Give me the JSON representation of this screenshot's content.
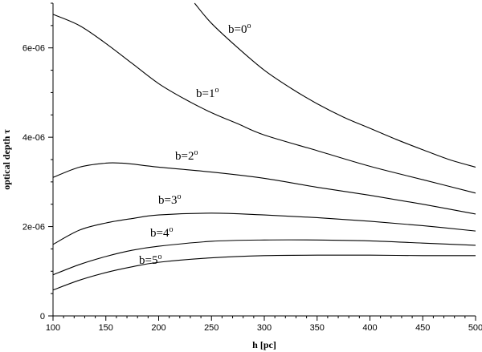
{
  "chart_data": {
    "type": "line",
    "title": "",
    "xlabel": "h [pc]",
    "ylabel": "optical depth τ",
    "xlim": [
      100,
      500
    ],
    "ylim": [
      0,
      7e-06
    ],
    "x_ticks": [
      100,
      150,
      200,
      250,
      300,
      350,
      400,
      450,
      500
    ],
    "x_tick_labels": [
      "100",
      "150",
      "200",
      "250",
      "300",
      "350",
      "400",
      "450",
      "500"
    ],
    "y_ticks": [
      0,
      2e-06,
      4e-06,
      6e-06
    ],
    "y_tick_labels": [
      "0",
      "2e-06",
      "4e-06",
      "6e-06"
    ],
    "grid": false,
    "legend": "none",
    "series": [
      {
        "name": "b=0°",
        "label_base": "b=0",
        "label_sup": "o",
        "x": [
          234,
          250,
          275,
          300,
          325,
          350,
          375,
          400,
          425,
          450,
          475,
          500
        ],
        "y": [
          7e-06,
          6.55e-06,
          6e-06,
          5.5e-06,
          5.1e-06,
          4.75e-06,
          4.45e-06,
          4.2e-06,
          3.95e-06,
          3.72e-06,
          3.5e-06,
          3.33e-06
        ]
      },
      {
        "name": "b=1°",
        "label_base": "b=1",
        "label_sup": "o",
        "x": [
          100,
          125,
          150,
          175,
          200,
          225,
          250,
          275,
          300,
          350,
          400,
          450,
          500
        ],
        "y": [
          6.75e-06,
          6.5e-06,
          6.1e-06,
          5.65e-06,
          5.2e-06,
          4.85e-06,
          4.55e-06,
          4.3e-06,
          4.05e-06,
          3.7e-06,
          3.35e-06,
          3.05e-06,
          2.75e-06
        ]
      },
      {
        "name": "b=2°",
        "label_base": "b=2",
        "label_sup": "o",
        "x": [
          100,
          125,
          150,
          165,
          175,
          200,
          250,
          300,
          350,
          400,
          450,
          500
        ],
        "y": [
          3.1e-06,
          3.33e-06,
          3.42e-06,
          3.42e-06,
          3.4e-06,
          3.33e-06,
          3.22e-06,
          3.08e-06,
          2.88e-06,
          2.7e-06,
          2.5e-06,
          2.28e-06
        ]
      },
      {
        "name": "b=3°",
        "label_base": "b=3",
        "label_sup": "o",
        "x": [
          100,
          125,
          150,
          175,
          200,
          250,
          300,
          350,
          400,
          450,
          500
        ],
        "y": [
          1.6e-06,
          1.92e-06,
          2.08e-06,
          2.18e-06,
          2.26e-06,
          2.3e-06,
          2.26e-06,
          2.2e-06,
          2.12e-06,
          2.02e-06,
          1.9e-06
        ]
      },
      {
        "name": "b=4°",
        "label_base": "b=4",
        "label_sup": "o",
        "x": [
          100,
          125,
          150,
          175,
          200,
          250,
          300,
          350,
          400,
          450,
          500
        ],
        "y": [
          9.2e-07,
          1.15e-06,
          1.33e-06,
          1.47e-06,
          1.56e-06,
          1.67e-06,
          1.7e-06,
          1.7e-06,
          1.68e-06,
          1.63e-06,
          1.58e-06
        ]
      },
      {
        "name": "b=5°",
        "label_base": "b=5",
        "label_sup": "o",
        "x": [
          100,
          125,
          150,
          175,
          200,
          250,
          300,
          350,
          400,
          450,
          500
        ],
        "y": [
          5.8e-07,
          8e-07,
          9.7e-07,
          1.1e-06,
          1.2e-06,
          1.3e-06,
          1.35e-06,
          1.36e-06,
          1.36e-06,
          1.35e-06,
          1.35e-06
        ]
      }
    ]
  }
}
